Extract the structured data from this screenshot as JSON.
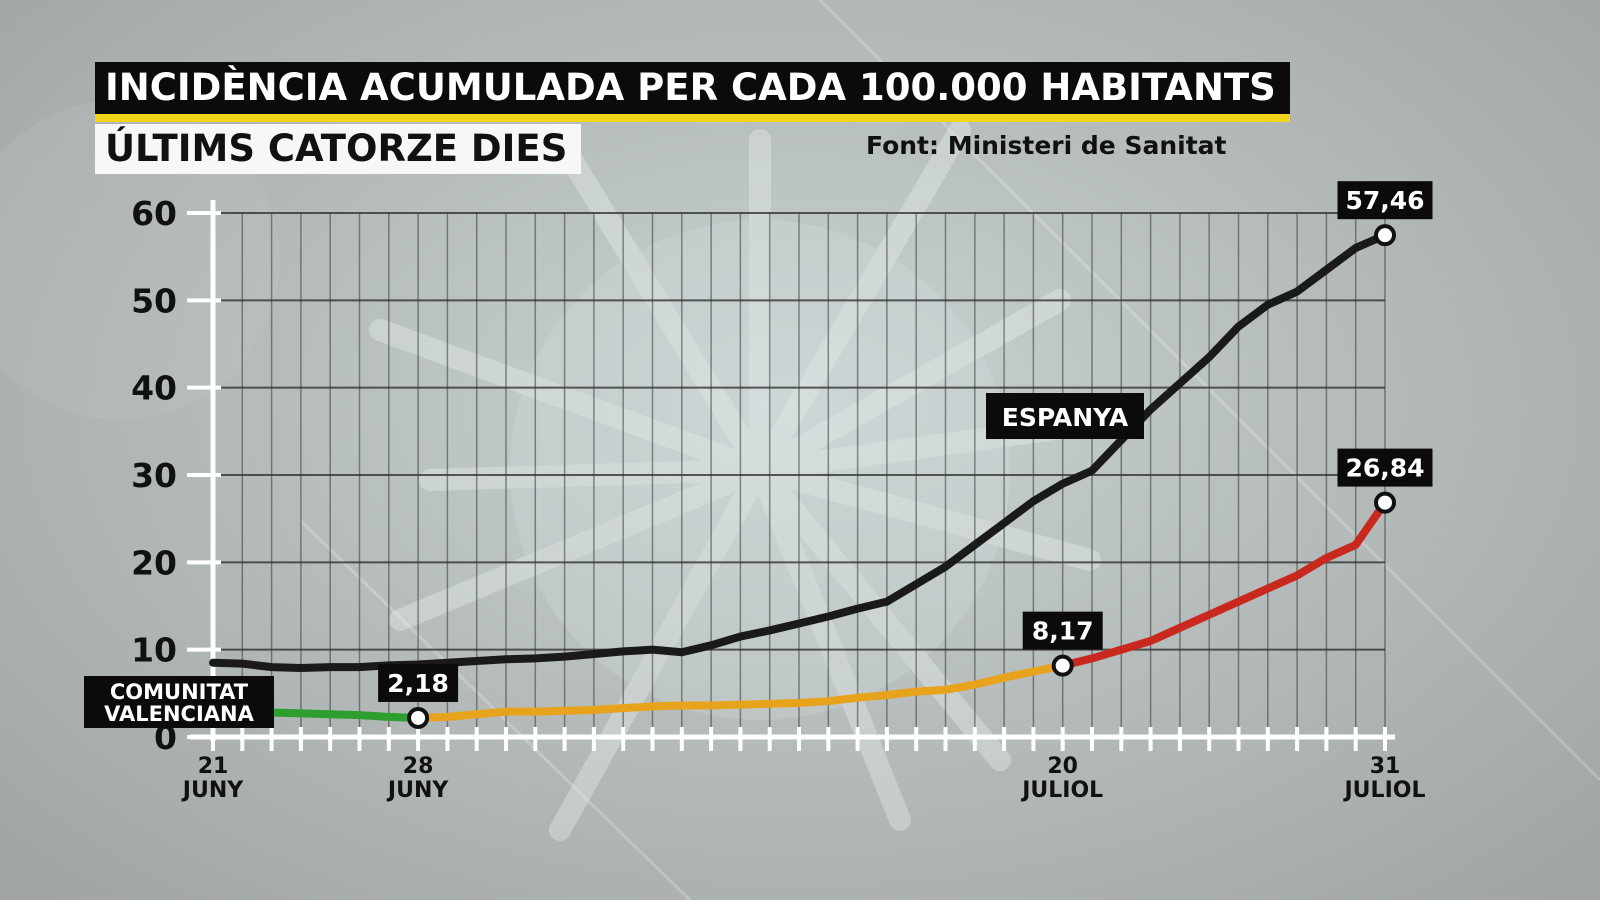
{
  "header": {
    "title": "INCIDÈNCIA ACUMULADA PER CADA 100.000 HABITANTS",
    "subtitle": "ÚLTIMS CATORZE DIES",
    "source": "Font: Ministeri de Sanitat"
  },
  "chart_data": {
    "type": "line",
    "title": "INCIDÈNCIA ACUMULADA PER CADA 100.000 HABITANTS",
    "subtitle": "ÚLTIMS CATORZE DIES",
    "xlabel": "",
    "ylabel": "",
    "ylim": [
      0,
      60
    ],
    "yticks": [
      0,
      10,
      20,
      30,
      40,
      50,
      60
    ],
    "xlim": [
      "2020-06-21",
      "2020-07-31"
    ],
    "x_tick_labels": [
      {
        "date": "2020-06-21",
        "day": "21",
        "month": "JUNY"
      },
      {
        "date": "2020-06-28",
        "day": "28",
        "month": "JUNY"
      },
      {
        "date": "2020-07-20",
        "day": "20",
        "month": "JULIOL"
      },
      {
        "date": "2020-07-31",
        "day": "31",
        "month": "JULIOL"
      }
    ],
    "grid": true,
    "series": [
      {
        "name": "ESPANYA",
        "color": "#1a1a1a",
        "x": [
          "2020-06-21",
          "2020-06-22",
          "2020-06-23",
          "2020-06-24",
          "2020-06-25",
          "2020-06-26",
          "2020-06-27",
          "2020-06-28",
          "2020-06-29",
          "2020-06-30",
          "2020-07-01",
          "2020-07-02",
          "2020-07-03",
          "2020-07-04",
          "2020-07-05",
          "2020-07-06",
          "2020-07-07",
          "2020-07-08",
          "2020-07-09",
          "2020-07-10",
          "2020-07-11",
          "2020-07-12",
          "2020-07-13",
          "2020-07-14",
          "2020-07-15",
          "2020-07-16",
          "2020-07-17",
          "2020-07-18",
          "2020-07-19",
          "2020-07-20",
          "2020-07-21",
          "2020-07-22",
          "2020-07-23",
          "2020-07-24",
          "2020-07-25",
          "2020-07-26",
          "2020-07-27",
          "2020-07-28",
          "2020-07-29",
          "2020-07-30",
          "2020-07-31"
        ],
        "values": [
          8.5,
          8.4,
          8.0,
          7.9,
          8.0,
          8.0,
          8.2,
          8.3,
          8.5,
          8.7,
          8.9,
          9.0,
          9.2,
          9.5,
          9.8,
          10.0,
          9.7,
          10.5,
          11.5,
          12.2,
          13.0,
          13.8,
          14.7,
          15.5,
          17.5,
          19.5,
          22.0,
          24.5,
          27.0,
          29.0,
          30.5,
          34.0,
          37.5,
          40.5,
          43.5,
          47.0,
          49.5,
          51.0,
          53.5,
          56.0,
          57.46
        ]
      },
      {
        "name": "COMUNITAT VALENCIANA",
        "color": "#e8a31c",
        "x": [
          "2020-06-21",
          "2020-06-22",
          "2020-06-23",
          "2020-06-24",
          "2020-06-25",
          "2020-06-26",
          "2020-06-27",
          "2020-06-28",
          "2020-06-29",
          "2020-06-30",
          "2020-07-01",
          "2020-07-02",
          "2020-07-03",
          "2020-07-04",
          "2020-07-05",
          "2020-07-06",
          "2020-07-07",
          "2020-07-08",
          "2020-07-09",
          "2020-07-10",
          "2020-07-11",
          "2020-07-12",
          "2020-07-13",
          "2020-07-14",
          "2020-07-15",
          "2020-07-16",
          "2020-07-17",
          "2020-07-18",
          "2020-07-19",
          "2020-07-20",
          "2020-07-21",
          "2020-07-22",
          "2020-07-23",
          "2020-07-24",
          "2020-07-25",
          "2020-07-26",
          "2020-07-27",
          "2020-07-28",
          "2020-07-29",
          "2020-07-30",
          "2020-07-31"
        ],
        "values": [
          3.0,
          3.0,
          2.8,
          2.7,
          2.6,
          2.5,
          2.3,
          2.18,
          2.3,
          2.6,
          2.9,
          2.9,
          3.0,
          3.1,
          3.3,
          3.5,
          3.6,
          3.6,
          3.7,
          3.8,
          3.9,
          4.1,
          4.5,
          4.8,
          5.2,
          5.4,
          6.0,
          6.8,
          7.5,
          8.17,
          9.0,
          10.0,
          11.0,
          12.5,
          14.0,
          15.5,
          17.0,
          18.5,
          20.5,
          22.0,
          26.84
        ],
        "segment_colors": [
          {
            "from": "2020-06-21",
            "to": "2020-06-28",
            "color": "#2e9e2e"
          },
          {
            "from": "2020-06-28",
            "to": "2020-07-20",
            "color": "#e8a31c"
          },
          {
            "from": "2020-07-20",
            "to": "2020-07-31",
            "color": "#c8281e"
          }
        ]
      }
    ],
    "annotations": [
      {
        "series": "ESPANYA",
        "x": "2020-07-31",
        "y": 57.46,
        "label": "57,46"
      },
      {
        "series": "COMUNITAT VALENCIANA",
        "x": "2020-06-28",
        "y": 2.18,
        "label": "2,18"
      },
      {
        "series": "COMUNITAT VALENCIANA",
        "x": "2020-07-20",
        "y": 8.17,
        "label": "8,17"
      },
      {
        "series": "COMUNITAT VALENCIANA",
        "x": "2020-07-31",
        "y": 26.84,
        "label": "26,84"
      }
    ],
    "series_labels": [
      {
        "series": "ESPANYA",
        "lines": [
          "ESPANYA"
        ]
      },
      {
        "series": "COMUNITAT VALENCIANA",
        "lines": [
          "COMUNITAT",
          "VALENCIANA"
        ]
      }
    ]
  }
}
